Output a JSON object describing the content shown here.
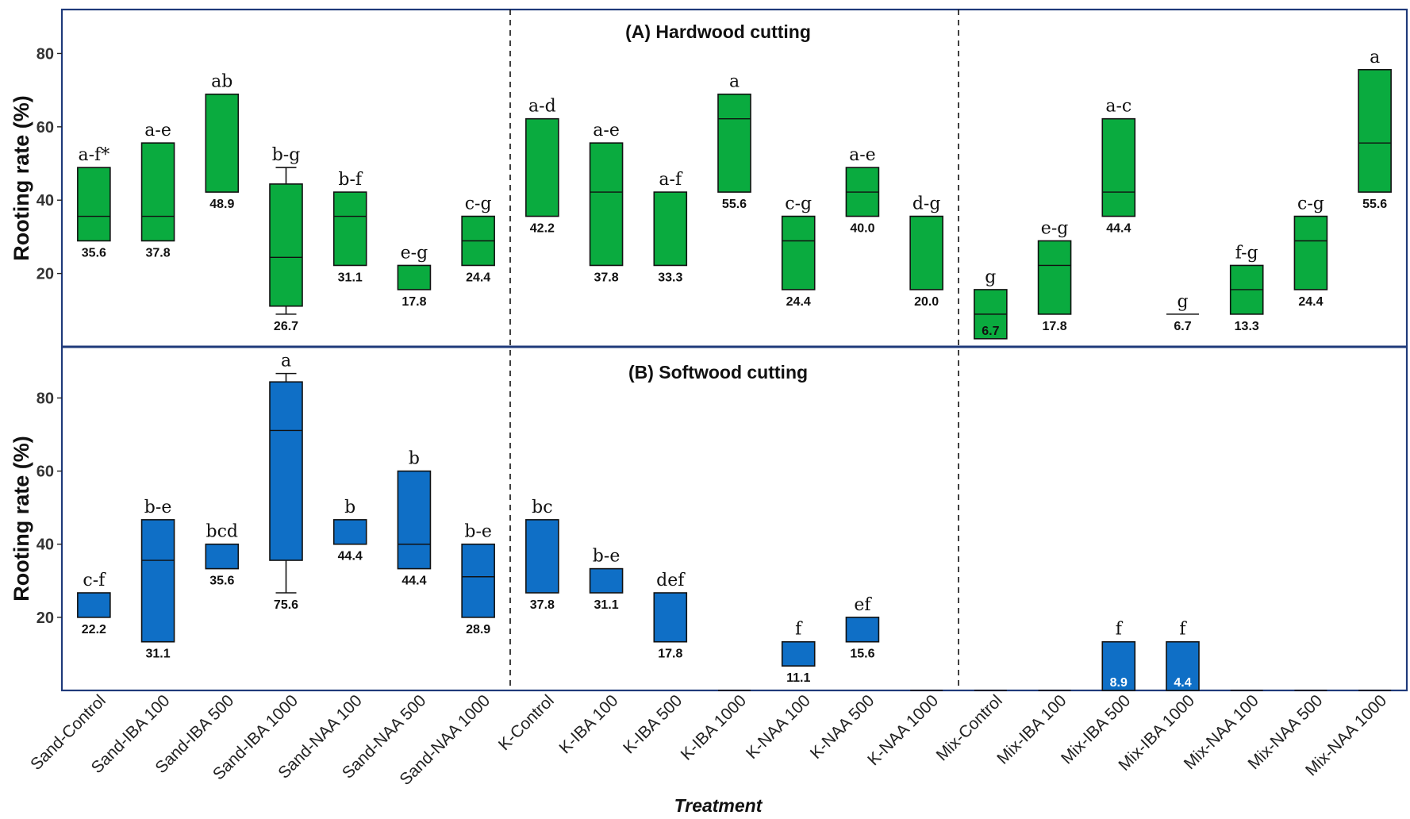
{
  "chart_data": {
    "type": "box",
    "xlabel": "Treatment",
    "ylabel": "Rooting rate (%)",
    "yticks": [
      20,
      40,
      60,
      80
    ],
    "categories": [
      "Sand-Control",
      "Sand-IBA 100",
      "Sand-IBA 500",
      "Sand-IBA 1000",
      "Sand-NAA 100",
      "Sand-NAA 500",
      "Sand-NAA 1000",
      "K-Control",
      "K-IBA 100",
      "K-IBA 500",
      "K-IBA 1000",
      "K-NAA 100",
      "K-NAA 500",
      "K-NAA 1000",
      "Mix-Control",
      "Mix-IBA 100",
      "Mix-IBA 500",
      "Mix-IBA 1000",
      "Mix-NAA 100",
      "Mix-NAA 500",
      "Mix-NAA 1000"
    ],
    "panels": [
      {
        "title": "(A) Hardwood cutting",
        "ylim": [
          0,
          92
        ],
        "color": "#0aab3f",
        "boxes": [
          {
            "q1": 28.9,
            "median": 35.6,
            "q3": 48.9,
            "letter": "a-f*",
            "value": "35.6"
          },
          {
            "q1": 28.9,
            "median": 35.6,
            "q3": 55.6,
            "letter": "a-e",
            "value": "37.8"
          },
          {
            "q1": 42.2,
            "median": 42.2,
            "q3": 68.9,
            "letter": "ab",
            "value": "48.9"
          },
          {
            "q1": 11.1,
            "median": 24.4,
            "q3": 44.4,
            "wlo": 8.9,
            "whi": 48.9,
            "letter": "b-g",
            "value": "26.7"
          },
          {
            "q1": 22.2,
            "median": 35.6,
            "q3": 42.2,
            "letter": "b-f",
            "value": "31.1"
          },
          {
            "q1": 15.6,
            "median": 15.6,
            "q3": 22.2,
            "letter": "e-g",
            "value": "17.8"
          },
          {
            "q1": 22.2,
            "median": 28.9,
            "q3": 35.6,
            "letter": "c-g",
            "value": "24.4"
          },
          {
            "q1": 35.6,
            "median": 35.6,
            "q3": 62.2,
            "letter": "a-d",
            "value": "42.2"
          },
          {
            "q1": 22.2,
            "median": 42.2,
            "q3": 55.6,
            "letter": "a-e",
            "value": "37.8"
          },
          {
            "q1": 22.2,
            "median": 22.2,
            "q3": 42.2,
            "letter": "a-f",
            "value": "33.3"
          },
          {
            "q1": 42.2,
            "median": 62.2,
            "q3": 68.9,
            "letter": "a",
            "value": "55.6"
          },
          {
            "q1": 15.6,
            "median": 28.9,
            "q3": 35.6,
            "letter": "c-g",
            "value": "24.4"
          },
          {
            "q1": 35.6,
            "median": 42.2,
            "q3": 48.9,
            "letter": "a-e",
            "value": "40.0"
          },
          {
            "q1": 15.6,
            "median": 15.6,
            "q3": 35.6,
            "letter": "d-g",
            "value": "20.0"
          },
          {
            "q1": 2.2,
            "median": 8.9,
            "q3": 15.6,
            "letter": "g",
            "value": "6.7",
            "inside": true
          },
          {
            "q1": 8.9,
            "median": 22.2,
            "q3": 28.9,
            "letter": "e-g",
            "value": "17.8"
          },
          {
            "q1": 35.6,
            "median": 42.2,
            "q3": 62.2,
            "letter": "a-c",
            "value": "44.4"
          },
          {
            "q1": 8.9,
            "median": 8.9,
            "q3": 8.9,
            "letter": "g",
            "value": "6.7"
          },
          {
            "q1": 8.9,
            "median": 15.6,
            "q3": 22.2,
            "letter": "f-g",
            "value": "13.3"
          },
          {
            "q1": 15.6,
            "median": 28.9,
            "q3": 35.6,
            "letter": "c-g",
            "value": "24.4"
          },
          {
            "q1": 42.2,
            "median": 55.6,
            "q3": 75.6,
            "letter": "a",
            "value": "55.6"
          }
        ]
      },
      {
        "title": "(B) Softwood cutting",
        "ylim": [
          0,
          94
        ],
        "color": "#0f6fc6",
        "boxes": [
          {
            "q1": 20.0,
            "median": 20.0,
            "q3": 26.7,
            "letter": "c-f",
            "value": "22.2"
          },
          {
            "q1": 13.3,
            "median": 35.6,
            "q3": 46.7,
            "letter": "b-e",
            "value": "31.1"
          },
          {
            "q1": 33.3,
            "median": 33.3,
            "q3": 40.0,
            "letter": "bcd",
            "value": "35.6"
          },
          {
            "q1": 35.6,
            "median": 71.1,
            "q3": 84.4,
            "wlo": 26.7,
            "whi": 86.7,
            "letter": "a",
            "value": "75.6"
          },
          {
            "q1": 40.0,
            "median": 40.0,
            "q3": 46.7,
            "letter": "b",
            "value": "44.4"
          },
          {
            "q1": 33.3,
            "median": 40.0,
            "q3": 60.0,
            "letter": "b",
            "value": "44.4"
          },
          {
            "q1": 20.0,
            "median": 31.1,
            "q3": 40.0,
            "letter": "b-e",
            "value": "28.9"
          },
          {
            "q1": 26.7,
            "median": 26.7,
            "q3": 46.7,
            "letter": "bc",
            "value": "37.8"
          },
          {
            "q1": 26.7,
            "median": 26.7,
            "q3": 33.3,
            "letter": "b-e",
            "value": "31.1"
          },
          {
            "q1": 13.3,
            "median": 13.3,
            "q3": 26.7,
            "letter": "def",
            "value": "17.8"
          },
          {
            "q1": 0,
            "median": 0,
            "q3": 0,
            "letter": "",
            "value": ""
          },
          {
            "q1": 6.7,
            "median": 6.7,
            "q3": 13.3,
            "letter": "f",
            "value": "11.1"
          },
          {
            "q1": 13.3,
            "median": 13.3,
            "q3": 20.0,
            "letter": "ef",
            "value": "15.6"
          },
          {
            "q1": 0,
            "median": 0,
            "q3": 0,
            "letter": "",
            "value": ""
          },
          {
            "q1": 0,
            "median": 0,
            "q3": 0,
            "letter": "",
            "value": ""
          },
          {
            "q1": 0,
            "median": 0,
            "q3": 0,
            "letter": "",
            "value": ""
          },
          {
            "q1": 0,
            "median": 0,
            "q3": 13.3,
            "letter": "f",
            "value": "8.9",
            "inside": true
          },
          {
            "q1": 0,
            "median": 0,
            "q3": 13.3,
            "letter": "f",
            "value": "4.4",
            "inside": true
          },
          {
            "q1": 0,
            "median": 0,
            "q3": 0,
            "letter": "",
            "value": ""
          },
          {
            "q1": 0,
            "median": 0,
            "q3": 0,
            "letter": "",
            "value": ""
          },
          {
            "q1": 0,
            "median": 0,
            "q3": 0,
            "letter": "",
            "value": ""
          }
        ]
      }
    ]
  }
}
